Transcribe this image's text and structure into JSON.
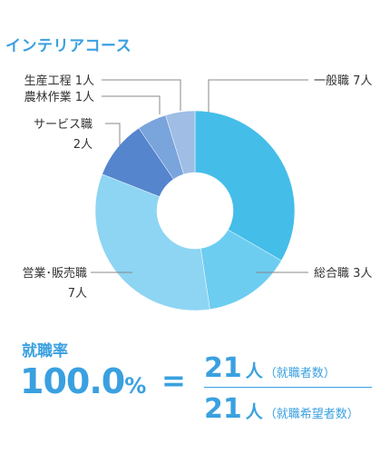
{
  "title": "インテリアコース",
  "chart_data": {
    "type": "pie",
    "donut": true,
    "total": 21,
    "slices": [
      {
        "label": "一般職 7人",
        "value": 7,
        "color": "#45bde9"
      },
      {
        "label": "総合職 3人",
        "value": 3,
        "color": "#6ccdf1"
      },
      {
        "label": "営業・販売職 7人",
        "value": 7,
        "color": "#8ed5f3"
      },
      {
        "label": "サービス職 2人",
        "value": 2,
        "color": "#5585cd"
      },
      {
        "label": "農林作業 1人",
        "value": 1,
        "color": "#7aa4dc"
      },
      {
        "label": "生産工程 1人",
        "value": 1,
        "color": "#9fbde5"
      }
    ]
  },
  "labels": {
    "ippan": "一般職 7人",
    "sougou": "総合職 3人",
    "eigyo_line1": "営業･販売職",
    "eigyo_line2": "7人",
    "service_line1": "サービス職",
    "service_line2": "2人",
    "nourin": "農林作業 1人",
    "seisan": "生産工程 1人"
  },
  "rate": {
    "title": "就職率",
    "value": "100.0",
    "unit": "%",
    "equals": "=",
    "numerator": {
      "count": "21",
      "unit": "人",
      "desc": "（就職者数）"
    },
    "denominator": {
      "count": "21",
      "unit": "人",
      "desc": "（就職希望者数）"
    }
  }
}
